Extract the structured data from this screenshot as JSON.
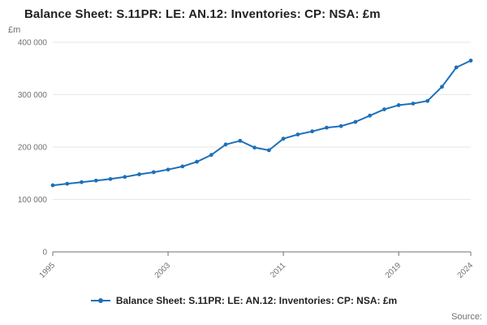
{
  "title": "Balance Sheet: S.11PR: LE: AN.12: Inventories: CP: NSA: £m",
  "y_axis_unit": "£m",
  "source_label": "Source:",
  "legend": {
    "label": "Balance Sheet: S.11PR: LE: AN.12: Inventories: CP: NSA: £m"
  },
  "colors": {
    "line": "#1d70b8",
    "grid": "#e6e6e6",
    "axis": "#707070",
    "tick_text": "#707070",
    "title_text": "#222222"
  },
  "chart_data": {
    "type": "line",
    "title": "Balance Sheet: S.11PR: LE: AN.12: Inventories: CP: NSA: £m",
    "xlabel": "",
    "ylabel": "£m",
    "ylim": [
      0,
      400000
    ],
    "yticks": [
      0,
      100000,
      200000,
      300000,
      400000
    ],
    "ytick_labels": [
      "0",
      "100 000",
      "200 000",
      "300 000",
      "400 000"
    ],
    "xtick_years": [
      1995,
      2003,
      2011,
      2019,
      2024
    ],
    "xtick_labels": [
      "1995",
      "2003",
      "2011",
      "2019",
      "2024"
    ],
    "grid": true,
    "legend_position": "bottom",
    "x": [
      1995,
      1996,
      1997,
      1998,
      1999,
      2000,
      2001,
      2002,
      2003,
      2004,
      2005,
      2006,
      2007,
      2008,
      2009,
      2010,
      2011,
      2012,
      2013,
      2014,
      2015,
      2016,
      2017,
      2018,
      2019,
      2020,
      2021,
      2022,
      2023,
      2024
    ],
    "series": [
      {
        "name": "Balance Sheet: S.11PR: LE: AN.12: Inventories: CP: NSA: £m",
        "values": [
          127000,
          130000,
          133000,
          136000,
          139000,
          143000,
          148000,
          152000,
          157000,
          163000,
          172000,
          185000,
          205000,
          212000,
          199000,
          194000,
          216000,
          224000,
          230000,
          237000,
          240000,
          248000,
          260000,
          272000,
          280000,
          283000,
          288000,
          315000,
          352000,
          365000
        ]
      }
    ]
  }
}
